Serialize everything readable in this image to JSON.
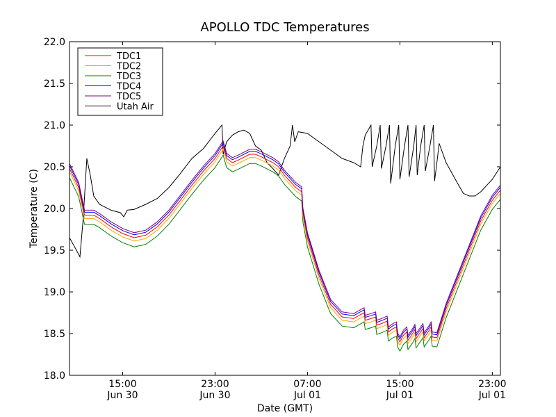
{
  "chart_data": {
    "type": "line",
    "title": "APOLLO TDC Temperatures",
    "xlabel": "Date (GMT)",
    "ylabel": "Temperature (C)",
    "x_unit": "hours since Jun 30 00:00 GMT",
    "xlim": [
      10.4,
      47.7
    ],
    "ylim": [
      18.0,
      22.0
    ],
    "y_ticks": [
      18.0,
      18.5,
      19.0,
      19.5,
      20.0,
      20.5,
      21.0,
      21.5,
      22.0
    ],
    "y_tick_labels": [
      "18.0",
      "18.5",
      "19.0",
      "19.5",
      "20.0",
      "20.5",
      "21.0",
      "21.5",
      "22.0"
    ],
    "x_ticks": [
      {
        "value": 15,
        "label_time": "15:00",
        "label_date": "Jun 30"
      },
      {
        "value": 23,
        "label_time": "23:00",
        "label_date": "Jun 30"
      },
      {
        "value": 31,
        "label_time": "07:00",
        "label_date": "Jul 01"
      },
      {
        "value": 39,
        "label_time": "15:00",
        "label_date": "Jul 01"
      },
      {
        "value": 47,
        "label_time": "23:00",
        "label_date": "Jul 01"
      }
    ],
    "legend_position": "top-left",
    "series": [
      {
        "name": "TDC1",
        "color": "#ff0000",
        "offset": 0.0,
        "points": [
          [
            10.4,
            20.48
          ],
          [
            11.2,
            20.25
          ],
          [
            11.7,
            19.92
          ],
          [
            12.0,
            19.92
          ],
          [
            12.5,
            19.92
          ],
          [
            13.0,
            19.88
          ],
          [
            14.0,
            19.78
          ],
          [
            15.0,
            19.7
          ],
          [
            16.0,
            19.65
          ],
          [
            17.0,
            19.68
          ],
          [
            18.0,
            19.78
          ],
          [
            19.0,
            19.92
          ],
          [
            20.0,
            20.1
          ],
          [
            21.0,
            20.28
          ],
          [
            22.0,
            20.45
          ],
          [
            23.0,
            20.6
          ],
          [
            23.7,
            20.75
          ],
          [
            24.0,
            20.6
          ],
          [
            24.5,
            20.55
          ],
          [
            25.0,
            20.58
          ],
          [
            26.0,
            20.65
          ],
          [
            26.5,
            20.65
          ],
          [
            27.0,
            20.62
          ],
          [
            28.0,
            20.55
          ],
          [
            28.5,
            20.5
          ],
          [
            29.0,
            20.4
          ],
          [
            30.0,
            20.25
          ],
          [
            30.5,
            20.2
          ],
          [
            30.6,
            19.95
          ],
          [
            31.0,
            19.65
          ],
          [
            32.0,
            19.2
          ],
          [
            33.0,
            18.85
          ],
          [
            34.0,
            18.7
          ],
          [
            35.0,
            18.68
          ],
          [
            35.5,
            18.72
          ],
          [
            35.9,
            18.75
          ],
          [
            36.0,
            18.66
          ],
          [
            36.5,
            18.68
          ],
          [
            36.9,
            18.7
          ],
          [
            37.0,
            18.6
          ],
          [
            37.4,
            18.62
          ],
          [
            37.9,
            18.65
          ],
          [
            38.0,
            18.52
          ],
          [
            38.4,
            18.56
          ],
          [
            38.7,
            18.58
          ],
          [
            38.8,
            18.45
          ],
          [
            39.0,
            18.4
          ],
          [
            39.3,
            18.48
          ],
          [
            39.6,
            18.52
          ],
          [
            39.7,
            18.42
          ],
          [
            40.1,
            18.5
          ],
          [
            40.3,
            18.55
          ],
          [
            40.4,
            18.44
          ],
          [
            40.8,
            18.52
          ],
          [
            41.0,
            18.56
          ],
          [
            41.1,
            18.45
          ],
          [
            41.5,
            18.53
          ],
          [
            41.7,
            18.58
          ],
          [
            41.8,
            18.46
          ],
          [
            42.2,
            18.45
          ],
          [
            43.0,
            18.8
          ],
          [
            44.0,
            19.15
          ],
          [
            45.0,
            19.5
          ],
          [
            46.0,
            19.85
          ],
          [
            47.0,
            20.1
          ],
          [
            47.7,
            20.22
          ]
        ]
      },
      {
        "name": "TDC2",
        "color": "#ffa500",
        "offset": -0.04
      },
      {
        "name": "TDC3",
        "color": "#008000",
        "offset": -0.11
      },
      {
        "name": "TDC4",
        "color": "#0000ff",
        "offset": 0.035
      },
      {
        "name": "TDC5",
        "color": "#800080",
        "offset": 0.06
      },
      {
        "name": "Utah Air",
        "color": "#000000",
        "points": [
          [
            10.4,
            19.65
          ],
          [
            11.0,
            19.5
          ],
          [
            11.3,
            19.42
          ],
          [
            11.6,
            19.9
          ],
          [
            11.9,
            20.6
          ],
          [
            12.2,
            20.4
          ],
          [
            12.5,
            20.15
          ],
          [
            13.0,
            20.05
          ],
          [
            14.0,
            19.98
          ],
          [
            14.8,
            19.95
          ],
          [
            15.1,
            19.9
          ],
          [
            15.4,
            19.98
          ],
          [
            16.0,
            19.99
          ],
          [
            17.0,
            20.05
          ],
          [
            18.0,
            20.12
          ],
          [
            19.0,
            20.25
          ],
          [
            20.0,
            20.42
          ],
          [
            21.0,
            20.6
          ],
          [
            22.0,
            20.72
          ],
          [
            23.0,
            20.9
          ],
          [
            23.6,
            21.0
          ],
          [
            23.7,
            20.65
          ],
          [
            24.0,
            20.8
          ],
          [
            24.5,
            20.88
          ],
          [
            25.0,
            20.92
          ],
          [
            25.5,
            20.94
          ],
          [
            26.0,
            20.9
          ],
          [
            26.5,
            20.75
          ],
          [
            27.0,
            20.7
          ],
          [
            27.5,
            20.55
          ],
          [
            28.0,
            20.48
          ],
          [
            28.5,
            20.4
          ],
          [
            29.0,
            20.6
          ],
          [
            29.5,
            20.75
          ],
          [
            29.7,
            21.0
          ],
          [
            29.9,
            20.8
          ],
          [
            30.2,
            20.92
          ],
          [
            31.0,
            20.9
          ],
          [
            32.0,
            20.8
          ],
          [
            33.0,
            20.7
          ],
          [
            34.0,
            20.6
          ],
          [
            35.0,
            20.55
          ],
          [
            35.6,
            20.5
          ],
          [
            35.8,
            20.75
          ],
          [
            36.0,
            20.88
          ],
          [
            36.5,
            21.0
          ],
          [
            36.6,
            20.5
          ],
          [
            37.0,
            20.75
          ],
          [
            37.3,
            21.0
          ],
          [
            37.4,
            20.48
          ],
          [
            37.8,
            20.75
          ],
          [
            38.1,
            21.0
          ],
          [
            38.2,
            20.3
          ],
          [
            38.6,
            20.75
          ],
          [
            38.9,
            21.0
          ],
          [
            39.0,
            20.35
          ],
          [
            39.4,
            20.75
          ],
          [
            39.7,
            21.0
          ],
          [
            39.8,
            20.38
          ],
          [
            40.2,
            20.75
          ],
          [
            40.4,
            21.0
          ],
          [
            40.5,
            20.4
          ],
          [
            40.8,
            20.75
          ],
          [
            41.1,
            21.0
          ],
          [
            41.2,
            20.45
          ],
          [
            41.6,
            20.75
          ],
          [
            41.9,
            21.0
          ],
          [
            42.0,
            20.33
          ],
          [
            42.2,
            20.55
          ],
          [
            42.4,
            20.78
          ],
          [
            43.0,
            20.55
          ],
          [
            44.0,
            20.3
          ],
          [
            44.5,
            20.18
          ],
          [
            45.0,
            20.15
          ],
          [
            45.5,
            20.15
          ],
          [
            46.0,
            20.2
          ],
          [
            47.0,
            20.35
          ],
          [
            47.7,
            20.5
          ]
        ]
      }
    ]
  }
}
